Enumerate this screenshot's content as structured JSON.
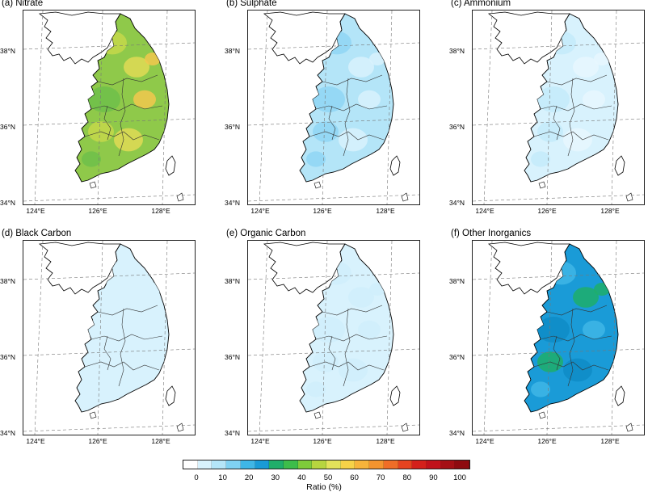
{
  "panels": [
    {
      "title": "(a) Nitrate",
      "shade": "nitrate"
    },
    {
      "title": "(b) Sulphate",
      "shade": "sulphate"
    },
    {
      "title": "(c) Ammonium",
      "shade": "ammonium"
    },
    {
      "title": "(d) Black Carbon",
      "shade": "black_carbon"
    },
    {
      "title": "(e) Organic Carbon",
      "shade": "organic_carbon"
    },
    {
      "title": "(f) Other Inorganics",
      "shade": "other_inorganics"
    }
  ],
  "lat_labels": [
    "38°N",
    "36°N",
    "34°N"
  ],
  "lon_labels": [
    "124°E",
    "126°E",
    "128°E"
  ],
  "colorbar": {
    "label": "Ratio (%)",
    "ticks": [
      "0",
      "10",
      "20",
      "30",
      "40",
      "50",
      "60",
      "70",
      "80",
      "90",
      "100"
    ],
    "colors": [
      "#ffffff",
      "#d8f2fd",
      "#b4e5f8",
      "#7fd1f2",
      "#3fb6e6",
      "#1a9bd7",
      "#1fae6a",
      "#3dbd4a",
      "#7ecb3a",
      "#b7d53f",
      "#e3e25a",
      "#f5d248",
      "#f6b43b",
      "#f3942f",
      "#ef6d27",
      "#e5431f",
      "#d4211b",
      "#c1121b",
      "#a50f15",
      "#8e0a10"
    ]
  },
  "shades": {
    "nitrate": {
      "base": "#8fc94a",
      "patch": [
        "#c6d84a",
        "#e0da55",
        "#6fbf4a",
        "#f2c84d"
      ]
    },
    "sulphate": {
      "base": "#b4e5f8",
      "patch": [
        "#8fd6f4",
        "#d8f2fd"
      ]
    },
    "ammonium": {
      "base": "#d8f2fd",
      "patch": [
        "#c4ebfa",
        "#e8f7fe"
      ]
    },
    "black_carbon": {
      "base": "#d8f2fd",
      "patch": [
        "#d8f2fd"
      ]
    },
    "organic_carbon": {
      "base": "#d8f2fd",
      "patch": [
        "#d0eefc"
      ]
    },
    "other_inorganics": {
      "base": "#1a9bd7",
      "patch": [
        "#3fb6e6",
        "#1fae6a",
        "#0f8cc7"
      ]
    }
  }
}
